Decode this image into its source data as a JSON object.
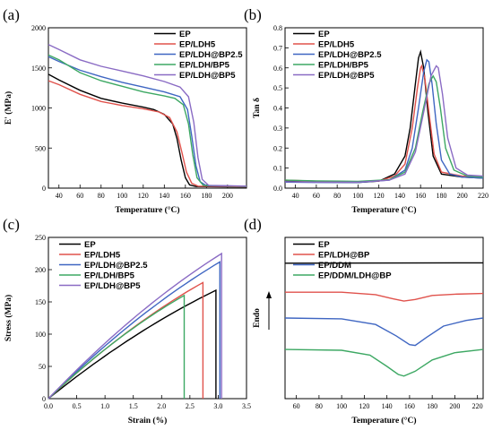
{
  "series_names": [
    "EP",
    "EP/LDH5",
    "EP/LDH@BP2.5",
    "EP/LDH/BP5",
    "EP/LDH@BP5"
  ],
  "colors": [
    "#000000",
    "#e0524c",
    "#3f66c2",
    "#3da863",
    "#8a6bc4"
  ],
  "chart_data": [
    {
      "panel": "(a)",
      "type": "line",
      "xlabel": "Temperature (°C)",
      "ylabel": "E' (MPa)",
      "xlim": [
        30,
        218
      ],
      "ylim": [
        0,
        2000
      ],
      "xticks": [
        40,
        60,
        80,
        100,
        120,
        140,
        160,
        180,
        200
      ],
      "yticks": [
        0,
        500,
        1000,
        1500,
        2000
      ],
      "legend": "top-right",
      "series": [
        {
          "name": "EP",
          "points": [
            [
              30,
              1420
            ],
            [
              40,
              1350
            ],
            [
              60,
              1220
            ],
            [
              80,
              1120
            ],
            [
              100,
              1060
            ],
            [
              120,
              1010
            ],
            [
              130,
              980
            ],
            [
              140,
              920
            ],
            [
              148,
              800
            ],
            [
              152,
              620
            ],
            [
              156,
              350
            ],
            [
              160,
              130
            ],
            [
              164,
              40
            ],
            [
              170,
              20
            ],
            [
              218,
              15
            ]
          ]
        },
        {
          "name": "EP/LDH5",
          "points": [
            [
              30,
              1340
            ],
            [
              40,
              1290
            ],
            [
              60,
              1170
            ],
            [
              80,
              1080
            ],
            [
              100,
              1030
            ],
            [
              120,
              990
            ],
            [
              135,
              950
            ],
            [
              145,
              880
            ],
            [
              152,
              700
            ],
            [
              157,
              430
            ],
            [
              161,
              200
            ],
            [
              166,
              60
            ],
            [
              172,
              25
            ],
            [
              218,
              18
            ]
          ]
        },
        {
          "name": "EP/LDH@BP2.5",
          "points": [
            [
              30,
              1640
            ],
            [
              40,
              1580
            ],
            [
              60,
              1470
            ],
            [
              80,
              1390
            ],
            [
              100,
              1320
            ],
            [
              120,
              1260
            ],
            [
              140,
              1200
            ],
            [
              155,
              1140
            ],
            [
              162,
              980
            ],
            [
              166,
              650
            ],
            [
              170,
              280
            ],
            [
              174,
              80
            ],
            [
              180,
              30
            ],
            [
              218,
              22
            ]
          ]
        },
        {
          "name": "EP/LDH/BP5",
          "points": [
            [
              30,
              1660
            ],
            [
              40,
              1600
            ],
            [
              60,
              1440
            ],
            [
              80,
              1340
            ],
            [
              100,
              1270
            ],
            [
              120,
              1200
            ],
            [
              140,
              1150
            ],
            [
              150,
              1120
            ],
            [
              158,
              1040
            ],
            [
              163,
              800
            ],
            [
              167,
              420
            ],
            [
              171,
              130
            ],
            [
              177,
              35
            ],
            [
              218,
              22
            ]
          ]
        },
        {
          "name": "EP/LDH@BP5",
          "points": [
            [
              30,
              1790
            ],
            [
              40,
              1730
            ],
            [
              60,
              1600
            ],
            [
              80,
              1520
            ],
            [
              100,
              1460
            ],
            [
              120,
              1400
            ],
            [
              140,
              1330
            ],
            [
              155,
              1260
            ],
            [
              163,
              1140
            ],
            [
              168,
              820
            ],
            [
              172,
              380
            ],
            [
              176,
              110
            ],
            [
              182,
              35
            ],
            [
              218,
              25
            ]
          ]
        }
      ]
    },
    {
      "panel": "(b)",
      "type": "line",
      "xlabel": "Temperature (°C)",
      "ylabel": "Tan δ",
      "xlim": [
        30,
        220
      ],
      "ylim": [
        0,
        0.8
      ],
      "xticks": [
        40,
        60,
        80,
        100,
        120,
        140,
        160,
        180,
        200,
        220
      ],
      "yticks": [
        0.0,
        0.1,
        0.2,
        0.3,
        0.4,
        0.5,
        0.6,
        0.7,
        0.8
      ],
      "legend": "top-left",
      "series": [
        {
          "name": "EP",
          "points": [
            [
              30,
              0.035
            ],
            [
              60,
              0.03
            ],
            [
              100,
              0.028
            ],
            [
              120,
              0.035
            ],
            [
              135,
              0.07
            ],
            [
              145,
              0.16
            ],
            [
              150,
              0.3
            ],
            [
              155,
              0.52
            ],
            [
              158,
              0.65
            ],
            [
              160,
              0.68
            ],
            [
              163,
              0.6
            ],
            [
              167,
              0.38
            ],
            [
              172,
              0.16
            ],
            [
              180,
              0.07
            ],
            [
              200,
              0.055
            ],
            [
              220,
              0.05
            ]
          ]
        },
        {
          "name": "EP/LDH5",
          "points": [
            [
              30,
              0.04
            ],
            [
              60,
              0.035
            ],
            [
              100,
              0.032
            ],
            [
              120,
              0.035
            ],
            [
              135,
              0.06
            ],
            [
              145,
              0.12
            ],
            [
              152,
              0.3
            ],
            [
              157,
              0.5
            ],
            [
              160,
              0.6
            ],
            [
              161,
              0.61
            ],
            [
              164,
              0.55
            ],
            [
              168,
              0.38
            ],
            [
              173,
              0.17
            ],
            [
              180,
              0.08
            ],
            [
              200,
              0.06
            ],
            [
              220,
              0.055
            ]
          ]
        },
        {
          "name": "EP/LDH@BP2.5",
          "points": [
            [
              30,
              0.03
            ],
            [
              60,
              0.028
            ],
            [
              100,
              0.028
            ],
            [
              130,
              0.04
            ],
            [
              145,
              0.09
            ],
            [
              152,
              0.2
            ],
            [
              158,
              0.4
            ],
            [
              163,
              0.58
            ],
            [
              166,
              0.64
            ],
            [
              168,
              0.63
            ],
            [
              171,
              0.52
            ],
            [
              175,
              0.32
            ],
            [
              180,
              0.14
            ],
            [
              188,
              0.07
            ],
            [
              200,
              0.055
            ],
            [
              220,
              0.05
            ]
          ]
        },
        {
          "name": "EP/LDH/BP5",
          "points": [
            [
              30,
              0.04
            ],
            [
              60,
              0.036
            ],
            [
              100,
              0.034
            ],
            [
              130,
              0.042
            ],
            [
              145,
              0.08
            ],
            [
              155,
              0.2
            ],
            [
              162,
              0.38
            ],
            [
              168,
              0.52
            ],
            [
              172,
              0.56
            ],
            [
              175,
              0.53
            ],
            [
              179,
              0.4
            ],
            [
              184,
              0.2
            ],
            [
              192,
              0.09
            ],
            [
              205,
              0.06
            ],
            [
              220,
              0.055
            ]
          ]
        },
        {
          "name": "EP/LDH@BP5",
          "points": [
            [
              30,
              0.032
            ],
            [
              60,
              0.03
            ],
            [
              100,
              0.03
            ],
            [
              130,
              0.04
            ],
            [
              145,
              0.07
            ],
            [
              155,
              0.18
            ],
            [
              163,
              0.38
            ],
            [
              170,
              0.56
            ],
            [
              175,
              0.61
            ],
            [
              177,
              0.6
            ],
            [
              181,
              0.47
            ],
            [
              186,
              0.25
            ],
            [
              194,
              0.1
            ],
            [
              205,
              0.065
            ],
            [
              220,
              0.06
            ]
          ]
        }
      ]
    },
    {
      "panel": "(c)",
      "type": "line",
      "xlabel": "Strain (%)",
      "ylabel": "Stress (MPa)",
      "xlim": [
        0,
        3.5
      ],
      "ylim": [
        0,
        250
      ],
      "xticks": [
        0.0,
        0.5,
        1.0,
        1.5,
        2.0,
        2.5,
        3.0,
        3.5
      ],
      "yticks": [
        0,
        50,
        100,
        150,
        200,
        250
      ],
      "legend": "top-left",
      "series": [
        {
          "name": "EP",
          "end_strain": 2.96,
          "end_stress": 168
        },
        {
          "name": "EP/LDH5",
          "end_strain": 2.73,
          "end_stress": 180
        },
        {
          "name": "EP/LDH@BP2.5",
          "end_strain": 3.03,
          "end_stress": 212
        },
        {
          "name": "EP/LDH/BP5",
          "end_strain": 2.4,
          "end_stress": 160
        },
        {
          "name": "EP/LDH@BP5",
          "end_strain": 3.06,
          "end_stress": 225
        }
      ]
    },
    {
      "panel": "(d)",
      "type": "line",
      "xlabel": "Temperature (°C)",
      "ylabel": "Endo",
      "xlim": [
        50,
        225
      ],
      "ylim": [
        0,
        1
      ],
      "xticks": [
        60,
        80,
        100,
        120,
        140,
        160,
        180,
        200,
        220
      ],
      "legend": "top-left",
      "series": [
        {
          "name": "EP",
          "color": "#000000",
          "points": [
            [
              50,
              0.84
            ],
            [
              225,
              0.842
            ]
          ]
        },
        {
          "name": "EP/LDH@BP",
          "color": "#e0524c",
          "points": [
            [
              50,
              0.66
            ],
            [
              100,
              0.66
            ],
            [
              130,
              0.645
            ],
            [
              145,
              0.62
            ],
            [
              155,
              0.605
            ],
            [
              165,
              0.615
            ],
            [
              180,
              0.64
            ],
            [
              200,
              0.648
            ],
            [
              225,
              0.652
            ]
          ]
        },
        {
          "name": "EP/DDM",
          "color": "#3f66c2",
          "points": [
            [
              50,
              0.5
            ],
            [
              100,
              0.495
            ],
            [
              130,
              0.46
            ],
            [
              148,
              0.39
            ],
            [
              160,
              0.335
            ],
            [
              165,
              0.33
            ],
            [
              175,
              0.38
            ],
            [
              190,
              0.45
            ],
            [
              210,
              0.485
            ],
            [
              225,
              0.5
            ]
          ]
        },
        {
          "name": "EP/DDM/LDH@BP",
          "color": "#3da863",
          "points": [
            [
              50,
              0.305
            ],
            [
              100,
              0.3
            ],
            [
              125,
              0.27
            ],
            [
              140,
              0.2
            ],
            [
              150,
              0.15
            ],
            [
              155,
              0.14
            ],
            [
              165,
              0.17
            ],
            [
              180,
              0.24
            ],
            [
              200,
              0.285
            ],
            [
              225,
              0.305
            ]
          ]
        }
      ]
    }
  ]
}
